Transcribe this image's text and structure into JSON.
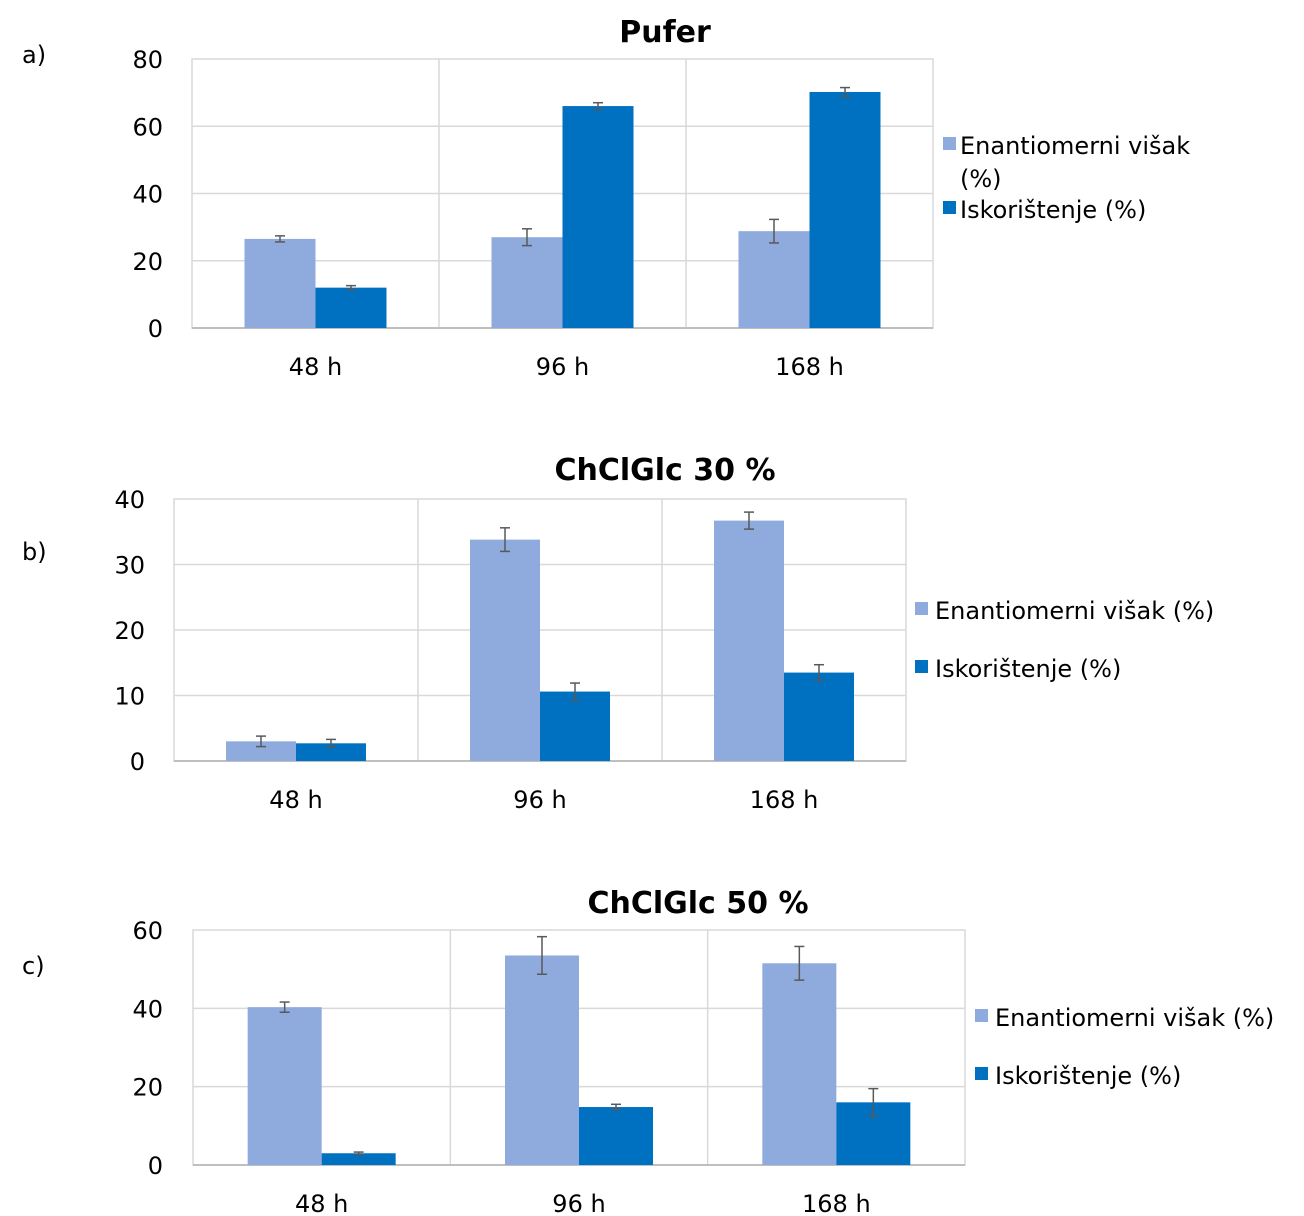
{
  "chart_data": [
    {
      "panel_label": "a)",
      "type": "bar",
      "title": "Pufer",
      "categories": [
        "48 h",
        "96 h",
        "168 h"
      ],
      "series": [
        {
          "name": "Enantiomerni višak (%)",
          "values": [
            26.5,
            27,
            28.8
          ],
          "errors": [
            0.9,
            2.5,
            3.5
          ]
        },
        {
          "name": "Iskorištenje (%)",
          "values": [
            12,
            66,
            70.2
          ],
          "errors": [
            0.6,
            1.0,
            1.3
          ]
        }
      ],
      "ylim": [
        0,
        80
      ],
      "yticks": [
        0,
        20,
        40,
        60,
        80
      ],
      "legend_lines": [
        [
          "Enantiomerni višak",
          "(%)"
        ],
        [
          "Iskorištenje (%)"
        ]
      ],
      "grid": true,
      "legend_position": "right",
      "colors": [
        "#8FAADC",
        "#0070C0"
      ]
    },
    {
      "panel_label": "b)",
      "type": "bar",
      "title": "ChClGlc 30 %",
      "categories": [
        "48 h",
        "96 h",
        "168 h"
      ],
      "series": [
        {
          "name": "Enantiomerni višak (%)",
          "values": [
            3,
            33.8,
            36.7
          ],
          "errors": [
            0.8,
            1.8,
            1.3
          ]
        },
        {
          "name": "Iskorištenje (%)",
          "values": [
            2.7,
            10.6,
            13.5
          ],
          "errors": [
            0.6,
            1.3,
            1.2
          ]
        }
      ],
      "ylim": [
        0,
        40
      ],
      "yticks": [
        0,
        10,
        20,
        30,
        40
      ],
      "legend_lines": [
        [
          "Enantiomerni višak (%)"
        ],
        [
          "Iskorištenje (%)"
        ]
      ],
      "grid": true,
      "legend_position": "right",
      "colors": [
        "#8FAADC",
        "#0070C0"
      ]
    },
    {
      "panel_label": "c)",
      "type": "bar",
      "title": "ChClGlc 50 %",
      "categories": [
        "48 h",
        "96 h",
        "168 h"
      ],
      "series": [
        {
          "name": "Enantiomerni višak (%)",
          "values": [
            40.3,
            53.5,
            51.5
          ],
          "errors": [
            1.3,
            4.8,
            4.3
          ]
        },
        {
          "name": "Iskorištenje (%)",
          "values": [
            3,
            14.8,
            16
          ],
          "errors": [
            0.3,
            0.7,
            3.5
          ]
        }
      ],
      "ylim": [
        0,
        60
      ],
      "yticks": [
        0,
        20,
        40,
        60
      ],
      "legend_lines": [
        [
          "Enantiomerni višak (%)"
        ],
        [
          "Iskorištenje (%)"
        ]
      ],
      "grid": true,
      "legend_position": "right",
      "colors": [
        "#8FAADC",
        "#0070C0"
      ]
    }
  ]
}
